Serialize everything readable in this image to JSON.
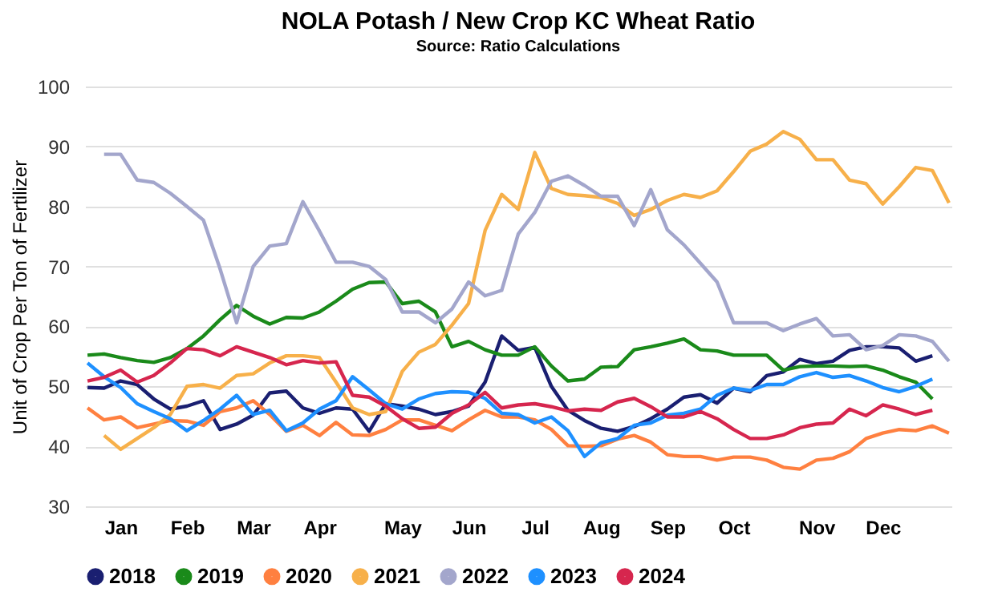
{
  "chart_data": {
    "type": "line",
    "title": "NOLA Potash / New Crop KC Wheat Ratio",
    "subtitle": "Source: Ratio Calculations",
    "ylabel": "Unit of Crop Per Ton of Fertilizer",
    "categories": [
      null,
      null,
      "Jan",
      null,
      null,
      null,
      "Feb",
      null,
      null,
      null,
      "Mar",
      null,
      null,
      null,
      "Apr",
      null,
      null,
      null,
      null,
      "May",
      null,
      null,
      null,
      "Jun",
      null,
      null,
      null,
      "Jul",
      null,
      null,
      null,
      "Aug",
      null,
      null,
      null,
      "Sep",
      null,
      null,
      null,
      "Oct",
      null,
      null,
      null,
      null,
      "Nov",
      null,
      null,
      null,
      "Dec",
      null,
      null,
      null,
      null
    ],
    "ylim": [
      30,
      100
    ],
    "yticks": [
      30,
      40,
      50,
      60,
      70,
      80,
      90,
      100
    ],
    "grid": "y",
    "legend": "bottom",
    "marker": "none",
    "line_style": "solid",
    "series": [
      {
        "name": "2018",
        "color": "#1a1f71",
        "values": [
          49.8,
          49.7,
          50.9,
          50.3,
          47.9,
          46.2,
          46.7,
          47.6,
          42.8,
          43.7,
          45.2,
          48.9,
          49.2,
          46.4,
          45.5,
          46.4,
          46.2,
          42.5,
          47.1,
          46.7,
          46.2,
          45.3,
          45.8,
          46.7,
          50.7,
          58.4,
          56,
          56.5,
          50,
          46,
          44.3,
          43,
          42.5,
          43.3,
          44.6,
          46.2,
          48.2,
          48.6,
          47.2,
          49.7,
          49.1,
          51.8,
          52.4,
          54.5,
          53.8,
          54.2,
          56,
          56.6,
          56.6,
          56.4,
          54.2,
          55.1,
          null
        ]
      },
      {
        "name": "2019",
        "color": "#1a8a1a",
        "values": [
          55.2,
          55.4,
          54.8,
          54.3,
          54,
          54.8,
          56.3,
          58.4,
          61.1,
          63.5,
          61.7,
          60.4,
          61.5,
          61.4,
          62.4,
          64.2,
          66.2,
          67.3,
          67.4,
          63.8,
          64.2,
          62.4,
          56.6,
          57.5,
          56.1,
          55.2,
          55.2,
          56.6,
          53.4,
          50.9,
          51.2,
          53.2,
          53.3,
          56.1,
          56.6,
          57.2,
          57.9,
          56.1,
          55.9,
          55.2,
          55.2,
          55.2,
          52.7,
          53.3,
          53.4,
          53.4,
          53.3,
          53.4,
          52.7,
          51.6,
          50.7,
          47.9,
          null
        ]
      },
      {
        "name": "2020",
        "color": "#ff8040",
        "values": [
          46.4,
          44.4,
          44.9,
          43.1,
          43.7,
          44.3,
          44.2,
          43.5,
          45.8,
          46.4,
          47.6,
          45.3,
          42.5,
          43.5,
          41.8,
          44,
          41.9,
          41.8,
          42.8,
          44.4,
          44.4,
          43.5,
          42.6,
          44.4,
          46,
          44.9,
          44.9,
          44.4,
          42.8,
          40.1,
          40,
          40.1,
          41.2,
          41.8,
          40.7,
          38.6,
          38.3,
          38.3,
          37.7,
          38.2,
          38.2,
          37.7,
          36.5,
          36.2,
          37.7,
          38,
          39.1,
          41.3,
          42.2,
          42.8,
          42.6,
          43.4,
          42.2
        ]
      },
      {
        "name": "2021",
        "color": "#f7b04a",
        "values": [
          null,
          41.8,
          39.5,
          41.3,
          43.1,
          45.3,
          50,
          50.3,
          49.7,
          51.8,
          52.1,
          53.9,
          55.1,
          55.1,
          54.8,
          50.7,
          46.4,
          45.3,
          45.8,
          52.5,
          55.7,
          57,
          60.2,
          63.8,
          76,
          82,
          79.5,
          89,
          83,
          82,
          81.8,
          81.5,
          80.5,
          78.5,
          79.5,
          81,
          82,
          81.5,
          82.6,
          85.8,
          89.2,
          90.4,
          92.5,
          91.2,
          87.8,
          87.8,
          84.4,
          83.8,
          80.4,
          83.3,
          86.5,
          86,
          80.6
        ]
      },
      {
        "name": "2022",
        "color": "#a3a6cc",
        "values": [
          null,
          88.7,
          88.7,
          84.4,
          84,
          82.2,
          80,
          77.7,
          69.6,
          60.6,
          70,
          73.4,
          73.8,
          80.8,
          75.9,
          70.7,
          70.7,
          70,
          67.8,
          62.4,
          62.4,
          60.6,
          62.9,
          67.4,
          65.1,
          66,
          75.4,
          79,
          84.2,
          85.1,
          83.5,
          81.7,
          81.7,
          76.8,
          82.8,
          76.1,
          73.6,
          70.5,
          67.4,
          60.6,
          60.6,
          60.6,
          59.3,
          60.4,
          61.3,
          58.4,
          58.6,
          56.1,
          56.8,
          58.6,
          58.4,
          57.5,
          54.2
        ]
      },
      {
        "name": "2023",
        "color": "#1e90ff",
        "values": [
          53.9,
          51.6,
          49.8,
          47.1,
          45.8,
          44.6,
          42.6,
          44.3,
          46.2,
          48.5,
          45.3,
          46,
          42.6,
          43.9,
          46.2,
          47.6,
          51.6,
          49.4,
          47.1,
          46.2,
          47.9,
          48.8,
          49.1,
          49,
          48,
          45.5,
          45.3,
          43.9,
          44.9,
          42.6,
          38.3,
          40.6,
          41.3,
          43.5,
          43.9,
          45.2,
          45.5,
          46.2,
          48.5,
          49.7,
          49.3,
          50.3,
          50.3,
          51.6,
          52.3,
          51.5,
          51.8,
          50.9,
          49.8,
          49.1,
          50,
          51.2,
          null
        ]
      },
      {
        "name": "2024",
        "color": "#d6264e",
        "values": [
          50.9,
          51.5,
          52.7,
          50.7,
          51.8,
          53.9,
          56.3,
          56.1,
          55.1,
          56.6,
          55.7,
          54.8,
          53.6,
          54.3,
          53.9,
          54.1,
          48.5,
          48.2,
          46.7,
          44.6,
          43,
          43.2,
          45.5,
          46.9,
          49,
          46.4,
          46.9,
          47.1,
          46.6,
          45.9,
          46.2,
          46,
          47.4,
          48,
          46.6,
          44.9,
          44.9,
          45.8,
          44.6,
          42.8,
          41.3,
          41.3,
          41.9,
          43.1,
          43.7,
          43.9,
          46.2,
          45.1,
          46.9,
          46.2,
          45.3,
          46,
          null
        ]
      }
    ]
  }
}
